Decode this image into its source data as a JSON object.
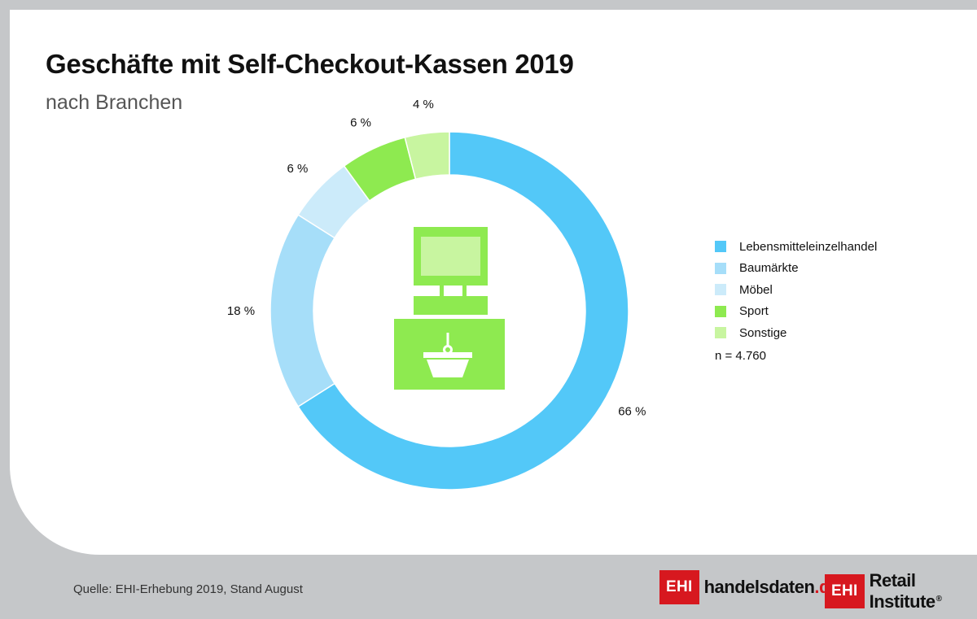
{
  "header": {
    "title": "Geschäfte mit Self-Checkout-Kassen 2019",
    "subtitle": "nach Branchen"
  },
  "chart_data": {
    "type": "pie",
    "variant": "donut",
    "title": "Geschäfte mit Self-Checkout-Kassen 2019",
    "subtitle": "nach Branchen",
    "categories": [
      "Lebensmitteleinzelhandel",
      "Baumärkte",
      "Möbel",
      "Sport",
      "Sonstige"
    ],
    "values": [
      66,
      18,
      6,
      6,
      4
    ],
    "data_labels": [
      "66 %",
      "18 %",
      "6 %",
      "6 %",
      "4 %"
    ],
    "colors": [
      "#53c8f8",
      "#a6def9",
      "#ccebfa",
      "#8eea50",
      "#c8f5a0"
    ],
    "legend_position": "right",
    "note": "n = 4.760",
    "center_icon": "self-checkout-kiosk-icon"
  },
  "footer": {
    "source": "Quelle: EHI-Erhebung 2019, Stand August",
    "brand1_box": "EHI",
    "brand1_name": "handelsdaten",
    "brand1_tld": ".de",
    "brand2_box": "EHI",
    "brand2_name": "Retail Institute",
    "brand2_reg": "®"
  }
}
